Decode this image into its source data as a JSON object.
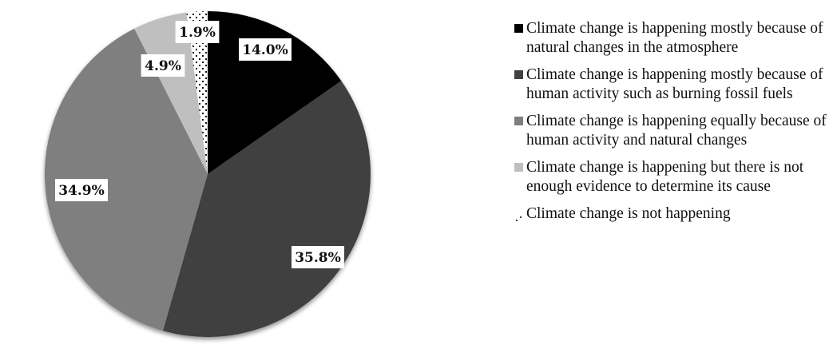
{
  "chart_data": {
    "type": "pie",
    "title": "",
    "start_angle_deg": 0,
    "direction": "clockwise",
    "slices": [
      {
        "label": "Climate change is happening mostly because of natural changes in the atmosphere",
        "value": 14.0,
        "display": "14.0%",
        "color": "#000000",
        "pattern": "solid"
      },
      {
        "label": "Climate change is happening mostly because of human activity such as burning fossil fuels",
        "value": 35.8,
        "display": "35.8%",
        "color": "#404040",
        "pattern": "solid"
      },
      {
        "label": "Climate change is happening equally because of human activity and natural changes",
        "value": 34.9,
        "display": "34.9%",
        "color": "#7f7f7f",
        "pattern": "solid"
      },
      {
        "label": "Climate change is happening but there is not enough evidence to determine its cause",
        "value": 4.9,
        "display": "4.9%",
        "color": "#bfbfbf",
        "pattern": "solid"
      },
      {
        "label": "Climate change is not happening",
        "value": 1.9,
        "display": "1.9%",
        "color": "#ffffff",
        "pattern": "dotted"
      }
    ],
    "legend_position": "right"
  },
  "labels": {
    "s0": "14.0%",
    "s1": "35.8%",
    "s2": "34.9%",
    "s3": "4.9%",
    "s4": "1.9%"
  },
  "legend": {
    "items": [
      {
        "label": "Climate change is happening mostly because of natural changes in the atmosphere",
        "color": "#000000"
      },
      {
        "label": "Climate change is happening mostly because of human activity such as burning fossil fuels",
        "color": "#404040"
      },
      {
        "label": "Climate change is happening equally because of human activity and natural changes",
        "color": "#7f7f7f"
      },
      {
        "label": "Climate change is happening but there is not enough evidence to determine its cause",
        "color": "#bfbfbf"
      },
      {
        "label": "Climate change is not happening",
        "color": "dotted"
      }
    ]
  }
}
